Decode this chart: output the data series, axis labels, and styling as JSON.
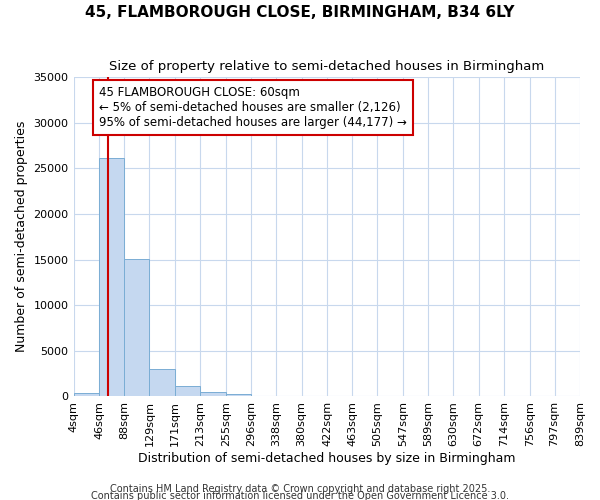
{
  "title": "45, FLAMBOROUGH CLOSE, BIRMINGHAM, B34 6LY",
  "subtitle": "Size of property relative to semi-detached houses in Birmingham",
  "ylabel": "Number of semi-detached properties",
  "xlabel": "Distribution of semi-detached houses by size in Birmingham",
  "footer1": "Contains HM Land Registry data © Crown copyright and database right 2025.",
  "footer2": "Contains public sector information licensed under the Open Government Licence 3.0.",
  "annotation_line1": "45 FLAMBOROUGH CLOSE: 60sqm",
  "annotation_line2": "← 5% of semi-detached houses are smaller (2,126)",
  "annotation_line3": "95% of semi-detached houses are larger (44,177) →",
  "bin_edges": [
    4,
    46,
    88,
    129,
    171,
    213,
    255,
    296,
    338,
    380,
    422,
    463,
    505,
    547,
    589,
    630,
    672,
    714,
    756,
    797,
    839
  ],
  "bin_labels": [
    "4sqm",
    "46sqm",
    "88sqm",
    "129sqm",
    "171sqm",
    "213sqm",
    "255sqm",
    "296sqm",
    "338sqm",
    "380sqm",
    "422sqm",
    "463sqm",
    "505sqm",
    "547sqm",
    "589sqm",
    "630sqm",
    "672sqm",
    "714sqm",
    "756sqm",
    "797sqm",
    "839sqm"
  ],
  "bar_heights": [
    400,
    26100,
    15100,
    3050,
    1100,
    480,
    300,
    0,
    0,
    0,
    0,
    0,
    0,
    0,
    0,
    0,
    0,
    0,
    0,
    0
  ],
  "bar_color": "#c5d8f0",
  "bar_edge_color": "#7aadd4",
  "vline_color": "#cc0000",
  "vline_x": 60,
  "ylim": [
    0,
    35000
  ],
  "yticks": [
    0,
    5000,
    10000,
    15000,
    20000,
    25000,
    30000,
    35000
  ],
  "bg_color": "#ffffff",
  "plot_bg_color": "#ffffff",
  "grid_color": "#c8d8ed",
  "annotation_box_facecolor": "#ffffff",
  "annotation_box_edgecolor": "#cc0000",
  "title_fontsize": 11,
  "subtitle_fontsize": 9.5,
  "axis_label_fontsize": 9,
  "tick_fontsize": 8,
  "annotation_fontsize": 8.5,
  "footer_fontsize": 7
}
